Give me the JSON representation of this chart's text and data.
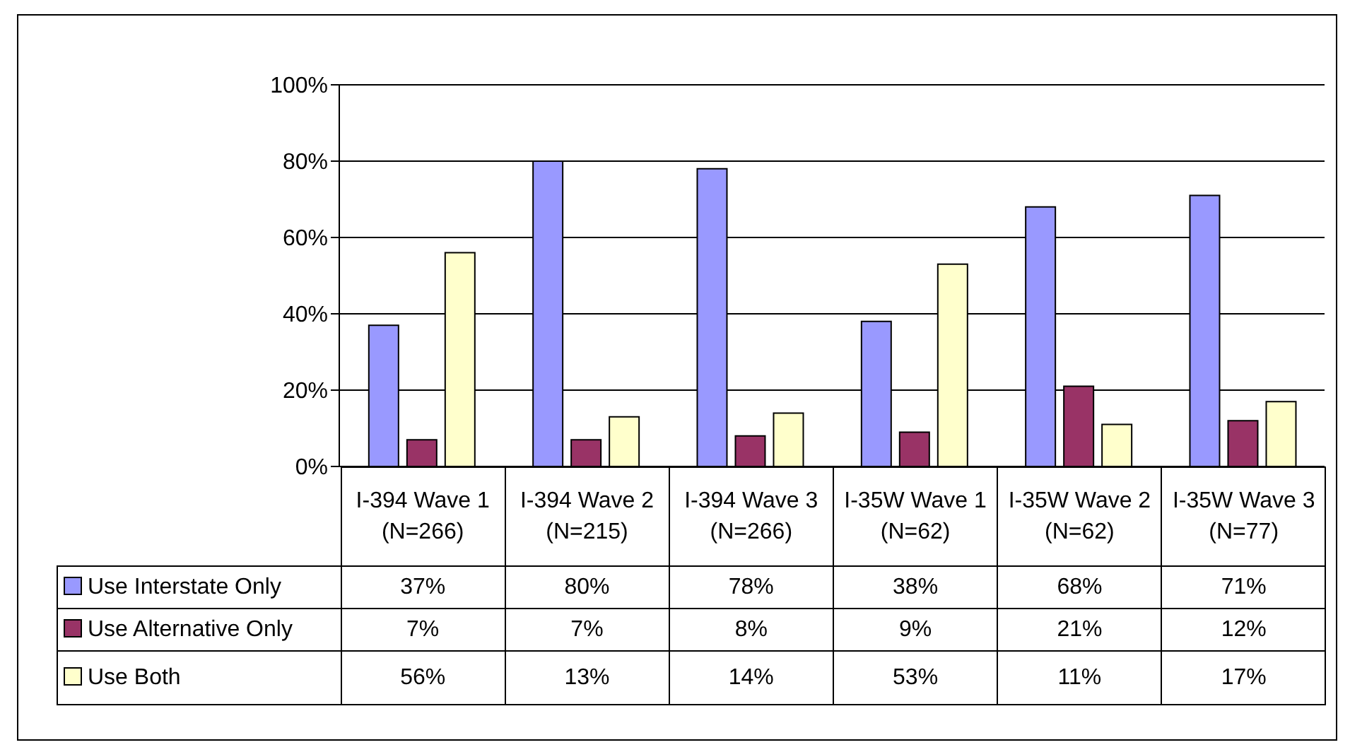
{
  "chart_data": {
    "type": "bar",
    "categories": [
      "I-394 Wave 1 (N=266)",
      "I-394 Wave 2 (N=215)",
      "I-394 Wave 3 (N=266)",
      "I-35W Wave 1 (N=62)",
      "I-35W Wave 2 (N=62)",
      "I-35W Wave 3 (N=77)"
    ],
    "series": [
      {
        "name": "Use Interstate Only",
        "color": "#9999ff",
        "values": [
          37,
          80,
          78,
          38,
          68,
          71
        ],
        "value_labels": [
          "37%",
          "80%",
          "78%",
          "38%",
          "68%",
          "71%"
        ]
      },
      {
        "name": "Use Alternative Only",
        "color": "#993366",
        "values": [
          7,
          7,
          8,
          9,
          21,
          12
        ],
        "value_labels": [
          "7%",
          "7%",
          "8%",
          "9%",
          "21%",
          "12%"
        ]
      },
      {
        "name": "Use Both",
        "color": "#ffffcc",
        "values": [
          56,
          13,
          14,
          53,
          11,
          17
        ],
        "value_labels": [
          "56%",
          "13%",
          "14%",
          "53%",
          "11%",
          "17%"
        ]
      }
    ],
    "ylim": [
      0,
      100
    ],
    "yticks": [
      {
        "value": 0,
        "label": "0%"
      },
      {
        "value": 20,
        "label": "20%"
      },
      {
        "value": 40,
        "label": "40%"
      },
      {
        "value": 60,
        "label": "60%"
      },
      {
        "value": 80,
        "label": "80%"
      },
      {
        "value": 100,
        "label": "100%"
      }
    ],
    "grid": "y",
    "legend": "bottom"
  }
}
